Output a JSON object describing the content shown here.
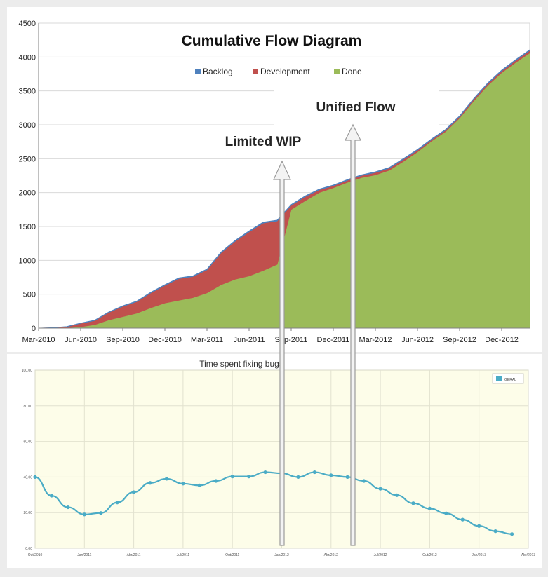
{
  "chart_data": [
    {
      "type": "area",
      "title": "Cumulative Flow Diagram",
      "legend_position": "top",
      "stacked": true,
      "ylim": [
        0,
        4500
      ],
      "yticks": [
        0,
        500,
        1000,
        1500,
        2000,
        2500,
        3000,
        3500,
        4000,
        4500
      ],
      "xlim": [
        "2010-03",
        "2013-02"
      ],
      "xtick_labels": [
        "Mar-2010",
        "Jun-2010",
        "Sep-2010",
        "Dec-2010",
        "Mar-2011",
        "Jun-2011",
        "Sep-2011",
        "Dec-2011",
        "Mar-2012",
        "Jun-2012",
        "Sep-2012",
        "Dec-2012"
      ],
      "x": [
        "2010-03",
        "2010-04",
        "2010-05",
        "2010-06",
        "2010-07",
        "2010-08",
        "2010-09",
        "2010-10",
        "2010-11",
        "2010-12",
        "2011-01",
        "2011-02",
        "2011-03",
        "2011-04",
        "2011-05",
        "2011-06",
        "2011-07",
        "2011-08",
        "2011-09",
        "2011-10",
        "2011-11",
        "2011-12",
        "2012-01",
        "2012-02",
        "2012-03",
        "2012-04",
        "2012-05",
        "2012-06",
        "2012-07",
        "2012-08",
        "2012-09",
        "2012-10",
        "2012-11",
        "2012-12",
        "2013-01",
        "2013-02"
      ],
      "series": [
        {
          "name": "Done",
          "color": "#9bbb59",
          "values": [
            0,
            0,
            5,
            20,
            50,
            120,
            170,
            220,
            300,
            370,
            410,
            450,
            520,
            640,
            720,
            770,
            850,
            940,
            1750,
            1880,
            2000,
            2070,
            2150,
            2220,
            2260,
            2330,
            2460,
            2600,
            2760,
            2900,
            3100,
            3350,
            3580,
            3770,
            3920,
            4060
          ]
        },
        {
          "name": "Development",
          "color": "#c0504d",
          "values": [
            0,
            5,
            15,
            50,
            60,
            110,
            150,
            170,
            220,
            260,
            320,
            310,
            340,
            470,
            560,
            650,
            700,
            640,
            60,
            60,
            40,
            30,
            30,
            30,
            35,
            30,
            30,
            25,
            20,
            20,
            20,
            25,
            25,
            25,
            30,
            35
          ]
        },
        {
          "name": "Backlog",
          "color": "#4f81bd",
          "values": [
            0,
            2,
            3,
            5,
            8,
            8,
            10,
            10,
            10,
            12,
            12,
            12,
            12,
            12,
            14,
            14,
            14,
            14,
            14,
            12,
            12,
            12,
            12,
            12,
            12,
            12,
            12,
            12,
            12,
            12,
            12,
            12,
            12,
            12,
            12,
            12
          ]
        }
      ],
      "annotations": [
        {
          "text": "Limited WIP",
          "x": "2011-08"
        },
        {
          "text": "Unified Flow",
          "x": "2011-12"
        }
      ]
    },
    {
      "type": "line",
      "title": "Time spent fixing bugs",
      "legend_position": "top-right",
      "grid": true,
      "ylim": [
        0,
        100
      ],
      "ytick_labels": [
        "0.00",
        "20.00",
        "40.00",
        "60.00",
        "80.00",
        "100.00"
      ],
      "xtick_labels": [
        "Out/2010",
        "Jan/2011",
        "Abr/2011",
        "Jul/2011",
        "Out/2011",
        "Jan/2012",
        "Abr/2012",
        "Jul/2012",
        "Out/2012",
        "Jan/2013",
        "Abr/2013"
      ],
      "x": [
        "2010-10",
        "2010-11",
        "2010-12",
        "2011-01",
        "2011-02",
        "2011-03",
        "2011-04",
        "2011-05",
        "2011-06",
        "2011-07",
        "2011-08",
        "2011-09",
        "2011-10",
        "2011-11",
        "2011-12",
        "2012-01",
        "2012-02",
        "2012-03",
        "2012-04",
        "2012-05",
        "2012-06",
        "2012-07",
        "2012-08",
        "2012-09",
        "2012-10",
        "2012-11",
        "2012-12",
        "2013-01",
        "2013-02",
        "2013-03"
      ],
      "series": [
        {
          "name": "GERAL",
          "color": "#4bacc6",
          "values": [
            40,
            29.5,
            23,
            19,
            19.8,
            25.7,
            31.5,
            36.7,
            39,
            36.3,
            35.3,
            37.8,
            40.3,
            40.3,
            42.7,
            42.1,
            40,
            42.7,
            41,
            40,
            37.8,
            33.4,
            29.8,
            25.3,
            22.3,
            19.6,
            16.1,
            12.5,
            9.6,
            8
          ]
        }
      ]
    }
  ]
}
